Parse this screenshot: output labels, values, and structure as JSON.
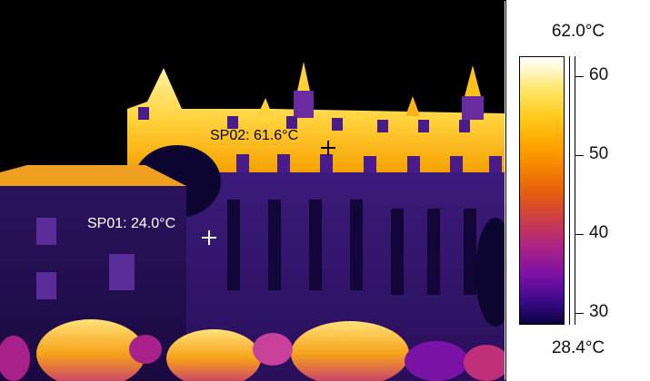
{
  "spots": [
    {
      "label": "SP01: 24.0°C"
    },
    {
      "label": "SP02: 61.6°C"
    }
  ],
  "scale": {
    "max_label": "62.0°C",
    "min_label": "28.4°C",
    "ticks": [
      "60",
      "50",
      "40",
      "30"
    ]
  },
  "colors": {
    "palette": [
      "#ffffff",
      "#ffe66a",
      "#ffa800",
      "#e35a12",
      "#a8208a",
      "#3e0a8c",
      "#0b0240"
    ],
    "background": "#000000"
  }
}
